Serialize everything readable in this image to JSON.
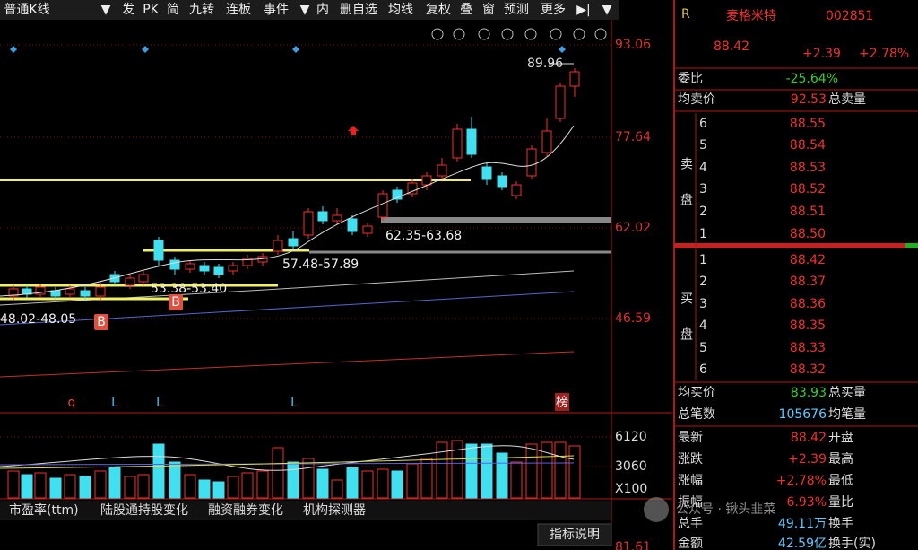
{
  "toolbar": [
    "普通K线",
    "▼",
    "发",
    "PK",
    "简",
    "九转",
    "连板",
    "事件",
    "▼",
    "内",
    "删自选",
    "均线",
    "复权",
    "叠",
    "窗",
    "预测",
    "更多",
    "▶|",
    "▼"
  ],
  "chart": {
    "price_axis": [
      "93.06",
      "77.64",
      "62.02",
      "46.59"
    ],
    "volume_axis": [
      "6120",
      "3060",
      "X100"
    ],
    "partial_label": "81.61",
    "high_label": "89.96",
    "zones": [
      "62.35-63.68",
      "57.48-57.89",
      "53.38-53.40",
      "48.02-48.05"
    ],
    "signals": [
      "B",
      "B"
    ],
    "markers": [
      "q",
      "L",
      "L",
      "L",
      "榜"
    ]
  },
  "bottom_tabs": [
    "市盈率(ttm)",
    "陆股通持股变化",
    "融资融券变化",
    "机构探测器"
  ],
  "indicator_button": "指标说明",
  "watermark": "公众号 · 锹头韭菜",
  "quote": {
    "badge": "R",
    "name": "麦格米特",
    "code": "002851",
    "price": "88.42",
    "change": "+2.39",
    "change_pct": "+2.78%",
    "ratio_label": "委比",
    "ratio": "-25.64%",
    "avg_sell_label": "均卖价",
    "avg_sell": "92.53",
    "total_sell_label": "总卖量",
    "sell_side": "卖盘",
    "sell": [
      {
        "level": "6",
        "price": "88.55"
      },
      {
        "level": "5",
        "price": "88.54"
      },
      {
        "level": "4",
        "price": "88.53"
      },
      {
        "level": "3",
        "price": "88.52"
      },
      {
        "level": "2",
        "price": "88.51"
      },
      {
        "level": "1",
        "price": "88.50"
      }
    ],
    "buy_side": "买盘",
    "buy": [
      {
        "level": "1",
        "price": "88.42"
      },
      {
        "level": "2",
        "price": "88.37"
      },
      {
        "level": "3",
        "price": "88.36"
      },
      {
        "level": "4",
        "price": "88.35"
      },
      {
        "level": "5",
        "price": "88.33"
      },
      {
        "level": "6",
        "price": "88.32"
      }
    ],
    "stats": [
      {
        "label": "均买价",
        "value": "83.93",
        "label2": "总买量"
      },
      {
        "label": "总笔数",
        "value": "105676",
        "label2": "均笔量"
      },
      {
        "label": "最新",
        "value": "88.42",
        "label2": "开盘"
      },
      {
        "label": "涨跌",
        "value": "+2.39",
        "label2": "最高"
      },
      {
        "label": "涨幅",
        "value": "+2.78%",
        "label2": "最低"
      },
      {
        "label": "振幅",
        "value": "6.93%",
        "label2": "量比"
      },
      {
        "label": "总手",
        "value": "49.11万",
        "label2": "换手"
      },
      {
        "label": "金额",
        "value": "42.59亿",
        "label2": "换手(实)"
      }
    ]
  }
}
